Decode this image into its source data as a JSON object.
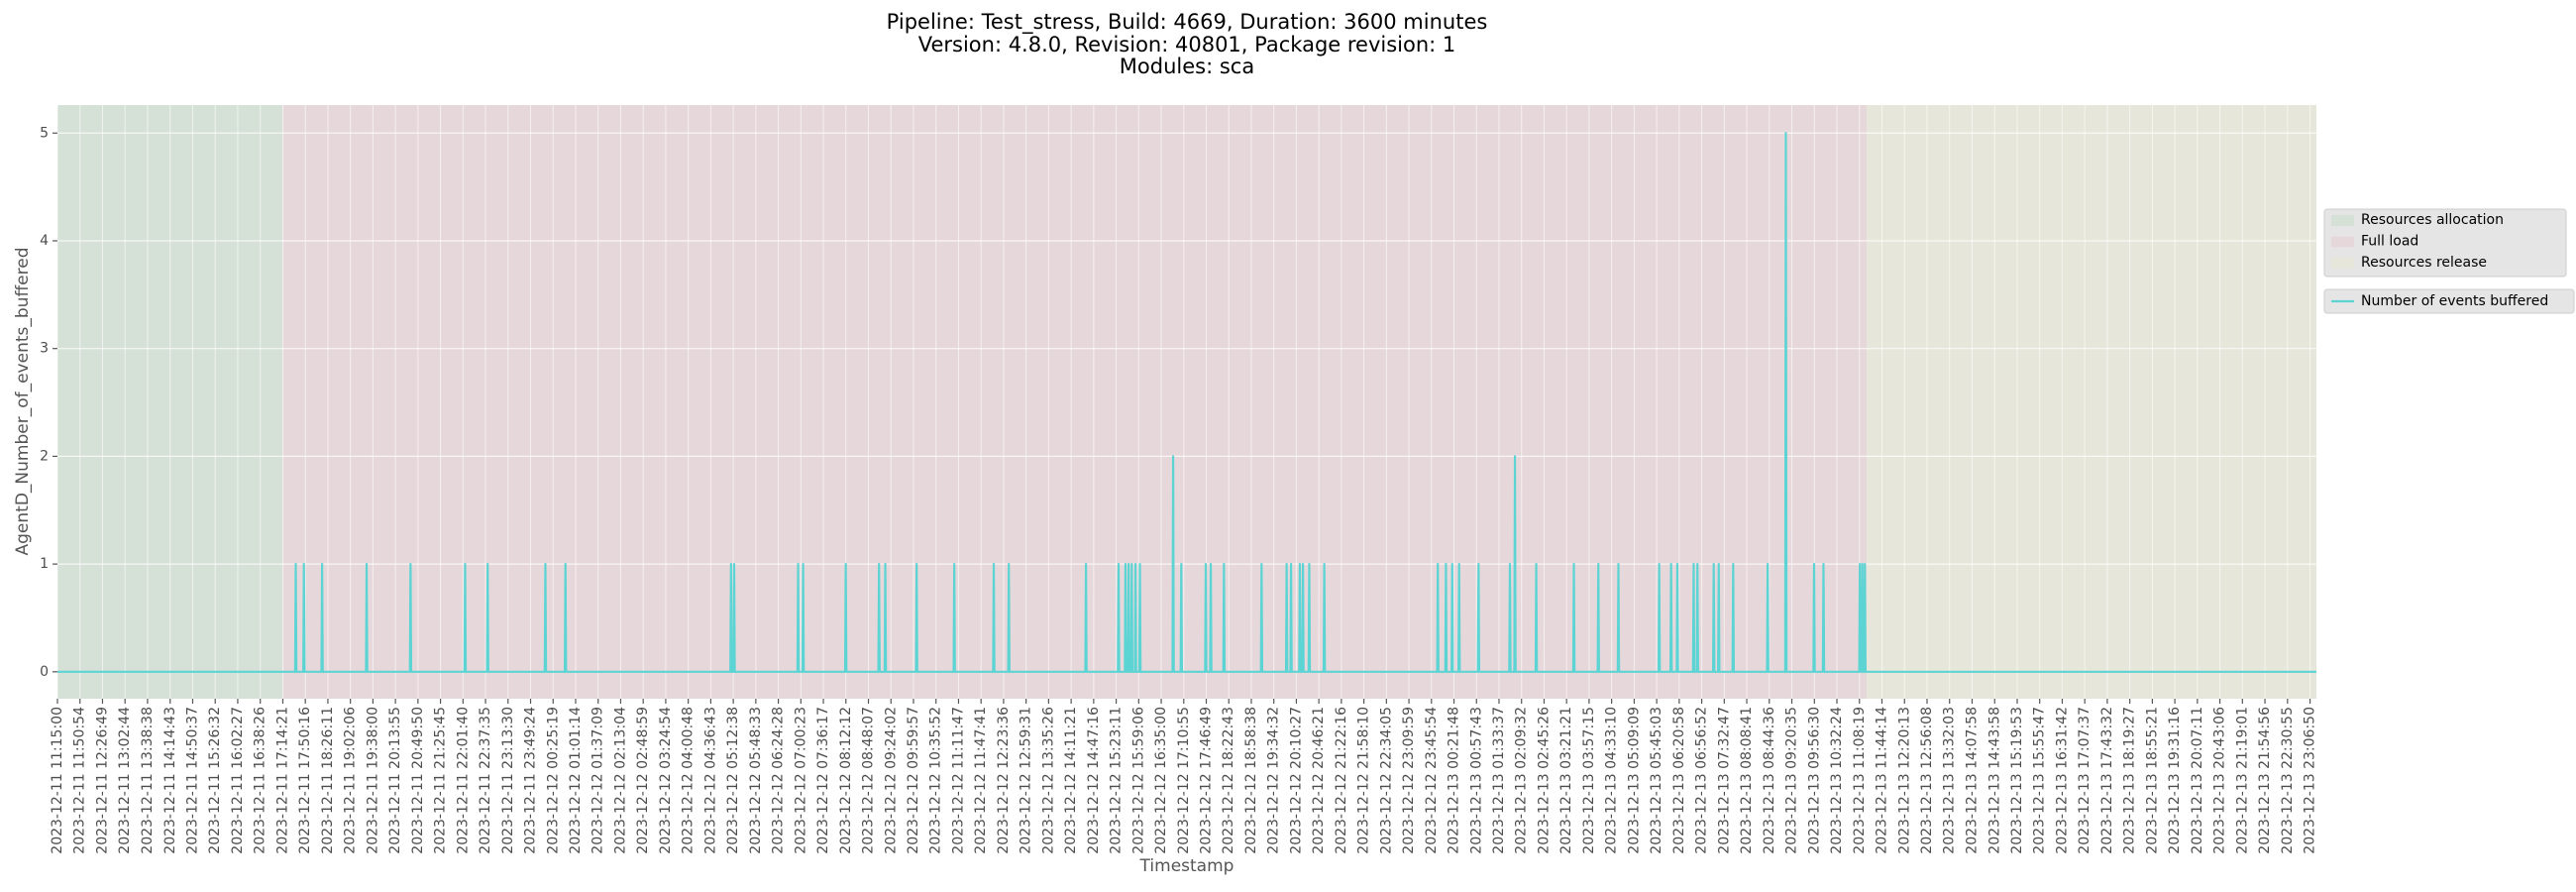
{
  "chart_data": {
    "type": "line",
    "title": [
      "Pipeline: Test_stress, Build: 4669, Duration: 3600 minutes",
      "Version: 4.8.0, Revision: 40801, Package revision: 1",
      "Modules: sca"
    ],
    "x_label": "Timestamp",
    "y_label": "AgentD_Number_of_events_buffered",
    "xlim": [
      "2023-12-11 11:15:00",
      "2023-12-13 23:17:00"
    ],
    "ylim": [
      -0.25,
      5.26
    ],
    "yticks": [
      0,
      1,
      2,
      3,
      4,
      5
    ],
    "grid": true,
    "legend": "right",
    "xticks": [
      "2023-12-11 11:15:00",
      "2023-12-11 11:50:54",
      "2023-12-11 12:26:49",
      "2023-12-11 13:02:44",
      "2023-12-11 13:38:38",
      "2023-12-11 14:14:43",
      "2023-12-11 14:50:37",
      "2023-12-11 15:26:32",
      "2023-12-11 16:02:27",
      "2023-12-11 16:38:26",
      "2023-12-11 17:14:21",
      "2023-12-11 17:50:16",
      "2023-12-11 18:26:11",
      "2023-12-11 19:02:06",
      "2023-12-11 19:38:00",
      "2023-12-11 20:13:55",
      "2023-12-11 20:49:50",
      "2023-12-11 21:25:45",
      "2023-12-11 22:01:40",
      "2023-12-11 22:37:35",
      "2023-12-11 23:13:30",
      "2023-12-11 23:49:24",
      "2023-12-12 00:25:19",
      "2023-12-12 01:01:14",
      "2023-12-12 01:37:09",
      "2023-12-12 02:13:04",
      "2023-12-12 02:48:59",
      "2023-12-12 03:24:54",
      "2023-12-12 04:00:48",
      "2023-12-12 04:36:43",
      "2023-12-12 05:12:38",
      "2023-12-12 05:48:33",
      "2023-12-12 06:24:28",
      "2023-12-12 07:00:23",
      "2023-12-12 07:36:17",
      "2023-12-12 08:12:12",
      "2023-12-12 08:48:07",
      "2023-12-12 09:24:02",
      "2023-12-12 09:59:57",
      "2023-12-12 10:35:52",
      "2023-12-12 11:11:47",
      "2023-12-12 11:47:41",
      "2023-12-12 12:23:36",
      "2023-12-12 12:59:31",
      "2023-12-12 13:35:26",
      "2023-12-12 14:11:21",
      "2023-12-12 14:47:16",
      "2023-12-12 15:23:11",
      "2023-12-12 15:59:06",
      "2023-12-12 16:35:00",
      "2023-12-12 17:10:55",
      "2023-12-12 17:46:49",
      "2023-12-12 18:22:43",
      "2023-12-12 18:58:38",
      "2023-12-12 19:34:32",
      "2023-12-12 20:10:27",
      "2023-12-12 20:46:21",
      "2023-12-12 21:22:16",
      "2023-12-12 21:58:10",
      "2023-12-12 22:34:05",
      "2023-12-12 23:09:59",
      "2023-12-12 23:45:54",
      "2023-12-13 00:21:48",
      "2023-12-13 00:57:43",
      "2023-12-13 01:33:37",
      "2023-12-13 02:09:32",
      "2023-12-13 02:45:26",
      "2023-12-13 03:21:21",
      "2023-12-13 03:57:15",
      "2023-12-13 04:33:10",
      "2023-12-13 05:09:09",
      "2023-12-13 05:45:03",
      "2023-12-13 06:20:58",
      "2023-12-13 06:56:52",
      "2023-12-13 07:32:47",
      "2023-12-13 08:08:41",
      "2023-12-13 08:44:36",
      "2023-12-13 09:20:35",
      "2023-12-13 09:56:30",
      "2023-12-13 10:32:24",
      "2023-12-13 11:08:19",
      "2023-12-13 11:44:14",
      "2023-12-13 12:20:13",
      "2023-12-13 12:56:08",
      "2023-12-13 13:32:03",
      "2023-12-13 14:07:58",
      "2023-12-13 14:43:58",
      "2023-12-13 15:19:53",
      "2023-12-13 15:55:47",
      "2023-12-13 16:31:42",
      "2023-12-13 17:07:37",
      "2023-12-13 17:43:32",
      "2023-12-13 18:19:27",
      "2023-12-13 18:55:21",
      "2023-12-13 19:31:16",
      "2023-12-13 20:07:11",
      "2023-12-13 20:43:06",
      "2023-12-13 21:19:01",
      "2023-12-13 21:54:56",
      "2023-12-13 22:30:55",
      "2023-12-13 23:06:50"
    ],
    "spans": [
      {
        "name": "Resources allocation",
        "color": "#d5e0d7",
        "start": "2023-12-11 11:15:00",
        "end": "2023-12-11 17:14:00"
      },
      {
        "name": "Full load",
        "color": "#e6d8da",
        "start": "2023-12-11 17:14:00",
        "end": "2023-12-13 11:20:00"
      },
      {
        "name": "Resources release",
        "color": "#e6e7da",
        "start": "2023-12-13 11:20:00",
        "end": "2023-12-13 23:17:00"
      }
    ],
    "series": [
      {
        "name": "Number of events buffered",
        "color": "#5dd4d4",
        "x": [
          "2023-12-11 11:15:00",
          "2023-12-11 17:34:00",
          "2023-12-11 17:35:00",
          "2023-12-11 17:36:00",
          "2023-12-11 17:47:00",
          "2023-12-11 17:48:00",
          "2023-12-11 17:49:00",
          "2023-12-11 18:16:00",
          "2023-12-11 18:17:00",
          "2023-12-11 18:18:00",
          "2023-12-11 19:27:00",
          "2023-12-11 19:28:00",
          "2023-12-11 19:29:00",
          "2023-12-11 20:37:00",
          "2023-12-11 20:38:00",
          "2023-12-11 20:39:00",
          "2023-12-11 22:04:00",
          "2023-12-11 22:05:00",
          "2023-12-11 22:06:00",
          "2023-12-11 22:40:00",
          "2023-12-11 22:41:00",
          "2023-12-11 22:42:00",
          "2023-12-12 00:12:00",
          "2023-12-12 00:13:00",
          "2023-12-12 00:14:00",
          "2023-12-12 00:44:00",
          "2023-12-12 00:45:00",
          "2023-12-12 00:46:00",
          "2023-12-12 05:08:00",
          "2023-12-12 05:09:00",
          "2023-12-12 05:10:00",
          "2023-12-12 05:13:00",
          "2023-12-12 05:14:00",
          "2023-12-12 05:15:00",
          "2023-12-12 06:55:00",
          "2023-12-12 06:56:00",
          "2023-12-12 06:57:00",
          "2023-12-12 07:03:00",
          "2023-12-12 07:04:00",
          "2023-12-12 07:05:00",
          "2023-12-12 08:11:00",
          "2023-12-12 08:12:00",
          "2023-12-12 08:13:00",
          "2023-12-12 09:04:00",
          "2023-12-12 09:05:00",
          "2023-12-12 09:06:00",
          "2023-12-12 09:14:00",
          "2023-12-12 09:15:00",
          "2023-12-12 09:16:00",
          "2023-12-12 10:04:00",
          "2023-12-12 10:05:00",
          "2023-12-12 10:06:00",
          "2023-12-12 11:04:00",
          "2023-12-12 11:05:00",
          "2023-12-12 11:06:00",
          "2023-12-12 12:07:00",
          "2023-12-12 12:08:00",
          "2023-12-12 12:09:00",
          "2023-12-12 12:31:00",
          "2023-12-12 12:32:00",
          "2023-12-12 12:33:00",
          "2023-12-12 14:34:00",
          "2023-12-12 14:35:00",
          "2023-12-12 14:36:00",
          "2023-12-12 15:26:00",
          "2023-12-12 15:27:00",
          "2023-12-12 15:28:00",
          "2023-12-12 15:37:00",
          "2023-12-12 15:38:00",
          "2023-12-12 15:39:00",
          "2023-12-12 15:42:00",
          "2023-12-12 15:43:00",
          "2023-12-12 15:44:00",
          "2023-12-12 15:47:00",
          "2023-12-12 15:48:00",
          "2023-12-12 15:49:00",
          "2023-12-12 15:53:00",
          "2023-12-12 15:54:00",
          "2023-12-12 15:55:00",
          "2023-12-12 16:00:00",
          "2023-12-12 16:01:00",
          "2023-12-12 16:02:00",
          "2023-12-12 16:53:00",
          "2023-12-12 16:54:00",
          "2023-12-12 16:55:00",
          "2023-12-12 17:06:00",
          "2023-12-12 17:07:00",
          "2023-12-12 17:08:00",
          "2023-12-12 17:45:00",
          "2023-12-12 17:46:00",
          "2023-12-12 17:47:00",
          "2023-12-12 17:53:00",
          "2023-12-12 17:54:00",
          "2023-12-12 17:55:00",
          "2023-12-12 18:14:00",
          "2023-12-12 18:15:00",
          "2023-12-12 18:16:00",
          "2023-12-12 19:14:00",
          "2023-12-12 19:15:00",
          "2023-12-12 19:16:00",
          "2023-12-12 19:54:00",
          "2023-12-12 19:55:00",
          "2023-12-12 19:56:00",
          "2023-12-12 20:01:00",
          "2023-12-12 20:02:00",
          "2023-12-12 20:03:00",
          "2023-12-12 20:15:00",
          "2023-12-12 20:16:00",
          "2023-12-12 20:17:00",
          "2023-12-12 20:20:00",
          "2023-12-12 20:21:00",
          "2023-12-12 20:22:00",
          "2023-12-12 20:30:00",
          "2023-12-12 20:31:00",
          "2023-12-12 20:32:00",
          "2023-12-12 20:54:00",
          "2023-12-12 20:55:00",
          "2023-12-12 20:56:00",
          "2023-12-12 23:55:00",
          "2023-12-12 23:56:00",
          "2023-12-12 23:57:00",
          "2023-12-13 00:08:00",
          "2023-12-13 00:09:00",
          "2023-12-13 00:10:00",
          "2023-12-13 00:18:00",
          "2023-12-13 00:19:00",
          "2023-12-13 00:20:00",
          "2023-12-13 00:29:00",
          "2023-12-13 00:30:00",
          "2023-12-13 00:31:00",
          "2023-12-13 01:00:00",
          "2023-12-13 01:01:00",
          "2023-12-13 01:02:00",
          "2023-12-13 01:50:00",
          "2023-12-13 01:51:00",
          "2023-12-13 01:52:00",
          "2023-12-13 01:58:00",
          "2023-12-13 01:59:00",
          "2023-12-13 02:00:00",
          "2023-12-13 02:32:00",
          "2023-12-13 02:33:00",
          "2023-12-13 02:34:00",
          "2023-12-13 03:32:00",
          "2023-12-13 03:33:00",
          "2023-12-13 03:34:00",
          "2023-12-13 04:11:00",
          "2023-12-13 04:12:00",
          "2023-12-13 04:13:00",
          "2023-12-13 04:43:00",
          "2023-12-13 04:44:00",
          "2023-12-13 04:45:00",
          "2023-12-13 05:48:00",
          "2023-12-13 05:49:00",
          "2023-12-13 05:50:00",
          "2023-12-13 06:07:00",
          "2023-12-13 06:08:00",
          "2023-12-13 06:09:00",
          "2023-12-13 06:17:00",
          "2023-12-13 06:18:00",
          "2023-12-13 06:19:00",
          "2023-12-13 06:43:00",
          "2023-12-13 06:44:00",
          "2023-12-13 06:45:00",
          "2023-12-13 06:49:00",
          "2023-12-13 06:50:00",
          "2023-12-13 06:51:00",
          "2023-12-13 07:15:00",
          "2023-12-13 07:16:00",
          "2023-12-13 07:17:00",
          "2023-12-13 07:23:00",
          "2023-12-13 07:24:00",
          "2023-12-13 07:25:00",
          "2023-12-13 07:46:00",
          "2023-12-13 07:47:00",
          "2023-12-13 07:48:00",
          "2023-12-13 08:41:00",
          "2023-12-13 08:42:00",
          "2023-12-13 08:43:00",
          "2023-12-13 09:10:00",
          "2023-12-13 09:11:00",
          "2023-12-13 09:12:00",
          "2023-12-13 09:55:00",
          "2023-12-13 09:56:00",
          "2023-12-13 09:57:00",
          "2023-12-13 10:10:00",
          "2023-12-13 10:11:00",
          "2023-12-13 10:12:00",
          "2023-12-13 11:08:00",
          "2023-12-13 11:09:00",
          "2023-12-13 11:10:00",
          "2023-12-13 11:12:00",
          "2023-12-13 11:13:00",
          "2023-12-13 11:14:00",
          "2023-12-13 11:16:00",
          "2023-12-13 11:17:00",
          "2023-12-13 11:18:00",
          "2023-12-13 23:17:00"
        ],
        "values": [
          0,
          0,
          1,
          0,
          0,
          1,
          0,
          0,
          1,
          0,
          0,
          1,
          0,
          0,
          1,
          0,
          0,
          1,
          0,
          0,
          1,
          0,
          0,
          1,
          0,
          0,
          1,
          0,
          0,
          1,
          0,
          0,
          1,
          0,
          0,
          1,
          0,
          0,
          1,
          0,
          0,
          1,
          0,
          0,
          1,
          0,
          0,
          1,
          0,
          0,
          1,
          0,
          0,
          1,
          0,
          0,
          1,
          0,
          0,
          1,
          0,
          0,
          1,
          0,
          0,
          1,
          0,
          0,
          1,
          0,
          0,
          1,
          0,
          0,
          1,
          0,
          0,
          1,
          0,
          0,
          1,
          0,
          0,
          2,
          0,
          0,
          1,
          0,
          0,
          1,
          0,
          0,
          1,
          0,
          0,
          1,
          0,
          0,
          1,
          0,
          0,
          1,
          0,
          0,
          1,
          0,
          0,
          1,
          0,
          0,
          1,
          0,
          0,
          1,
          0,
          0,
          1,
          0,
          0,
          1,
          0,
          0,
          1,
          0,
          0,
          1,
          0,
          0,
          1,
          0,
          0,
          1,
          0,
          0,
          1,
          0,
          0,
          2,
          0,
          0,
          1,
          0,
          0,
          1,
          0,
          0,
          1,
          0,
          0,
          1,
          0,
          0,
          1,
          0,
          0,
          1,
          0,
          0,
          1,
          0,
          0,
          1,
          0,
          0,
          1,
          0,
          0,
          1,
          0,
          0,
          1,
          0,
          0,
          1,
          0,
          0,
          1,
          0,
          0,
          5,
          0,
          0,
          1,
          0,
          0,
          1,
          0,
          0,
          1,
          0,
          0,
          1,
          0,
          0,
          1,
          0,
          0
        ]
      }
    ]
  }
}
